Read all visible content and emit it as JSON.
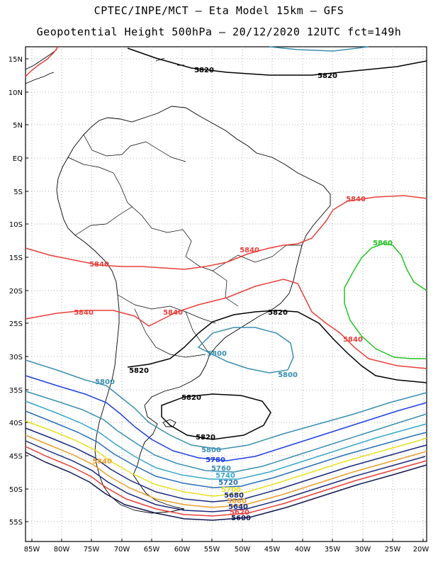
{
  "header": {
    "line1": "CPTEC/INPE/MCT –  Eta Model 15km – GFS",
    "line2": "Geopotential Height 500hPa – 20/12/2020 12UTC fct=149h"
  },
  "map": {
    "lat_labels": [
      "15N",
      "10N",
      "5N",
      "EQ",
      "5S",
      "10S",
      "15S",
      "20S",
      "25S",
      "30S",
      "35S",
      "40S",
      "45S",
      "50S",
      "55S"
    ],
    "lon_labels": [
      "85W",
      "80W",
      "75W",
      "70W",
      "65W",
      "60W",
      "55W",
      "50W",
      "45W",
      "40W",
      "35W",
      "30W",
      "25W",
      "20W"
    ],
    "contour_labels": [
      {
        "text": "5820",
        "color": "#000000"
      },
      {
        "text": "5820",
        "color": "#000000"
      },
      {
        "text": "5840",
        "color": "#e8403a"
      },
      {
        "text": "5840",
        "color": "#e8403a"
      },
      {
        "text": "5840",
        "color": "#e8403a"
      },
      {
        "text": "5840",
        "color": "#e8403a"
      },
      {
        "text": "5840",
        "color": "#e8403a"
      },
      {
        "text": "5840",
        "color": "#e8403a"
      },
      {
        "text": "5860",
        "color": "#22c422"
      },
      {
        "text": "5820",
        "color": "#000000"
      },
      {
        "text": "5820",
        "color": "#000000"
      },
      {
        "text": "5800",
        "color": "#3a8fb0"
      },
      {
        "text": "5800",
        "color": "#3a8fb0"
      },
      {
        "text": "5800",
        "color": "#3a8fb0"
      },
      {
        "text": "5820",
        "color": "#000000"
      },
      {
        "text": "5820",
        "color": "#000000"
      },
      {
        "text": "5800",
        "color": "#3a8fb0"
      },
      {
        "text": "5780",
        "color": "#2040e0"
      },
      {
        "text": "5760",
        "color": "#3a8fb0"
      },
      {
        "text": "5740",
        "color": "#38a8c8"
      },
      {
        "text": "5720",
        "color": "#2a70b8"
      },
      {
        "text": "5700",
        "color": "#e8e020"
      },
      {
        "text": "5680",
        "color": "#1a2a7a"
      },
      {
        "text": "5660",
        "color": "#e8a030"
      },
      {
        "text": "5640",
        "color": "#1a2a7a"
      },
      {
        "text": "5620",
        "color": "#e8403a"
      },
      {
        "text": "5600",
        "color": "#101850"
      },
      {
        "text": "5840",
        "color": "#e8a030"
      }
    ]
  }
}
